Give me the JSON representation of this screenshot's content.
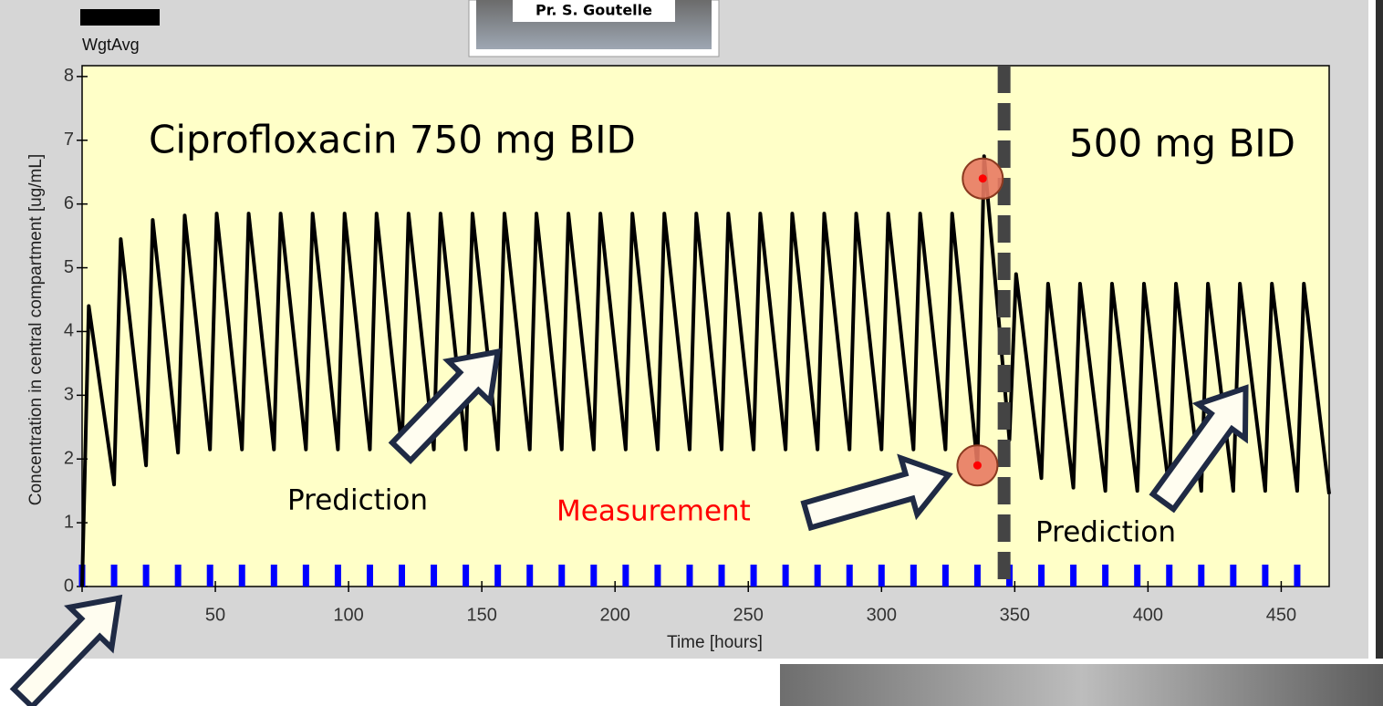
{
  "photo": {
    "caption": "Pr. S. Goutelle"
  },
  "chart_data": {
    "type": "line",
    "xlabel": "Time [hours]",
    "ylabel": "Concentration in central compartment [ug/mL]",
    "annotations": [
      "Ciprofloxacin 750 mg BID",
      "500 mg BID",
      "Prediction",
      "Measurement",
      "Prediction"
    ],
    "x": [
      0,
      2.5,
      12,
      14.5,
      24,
      26.5,
      36,
      38.5,
      48,
      50.5,
      60,
      62.5,
      72,
      74.5,
      84,
      86.5,
      96,
      98.5,
      108,
      110.5,
      120,
      122.5,
      132,
      134.5,
      144,
      146.5,
      156,
      158.5,
      168,
      170.5,
      180,
      182.5,
      192,
      194.5,
      204,
      206.5,
      216,
      218.5,
      228,
      230.5,
      240,
      242.5,
      252,
      254.5,
      264,
      266.5,
      276,
      278.5,
      288,
      290.5,
      300,
      302.5,
      312,
      314.5,
      324,
      326.5,
      336,
      338.5,
      348,
      350.5,
      360,
      362.5,
      372,
      374.5,
      384,
      386.5,
      396,
      398.5,
      408,
      410.5,
      420,
      422.5,
      432,
      434.5,
      444,
      446.5,
      456,
      458.5,
      468
    ],
    "series": [
      {
        "name": "WgtAvg",
        "color": "#000000",
        "values": [
          0,
          4.4,
          1.6,
          5.45,
          1.9,
          5.75,
          2.1,
          5.82,
          2.15,
          5.85,
          2.15,
          5.85,
          2.15,
          5.85,
          2.15,
          5.85,
          2.15,
          5.85,
          2.15,
          5.85,
          2.15,
          5.85,
          2.15,
          5.85,
          2.15,
          5.85,
          2.15,
          5.85,
          2.15,
          5.85,
          2.15,
          5.85,
          2.15,
          5.85,
          2.15,
          5.85,
          2.15,
          5.85,
          2.15,
          5.85,
          2.15,
          5.85,
          2.15,
          5.85,
          2.15,
          5.85,
          2.15,
          5.85,
          2.15,
          5.85,
          2.15,
          5.85,
          2.15,
          5.85,
          2.15,
          5.85,
          1.9,
          6.75,
          2.3,
          4.9,
          1.7,
          4.75,
          1.55,
          4.75,
          1.5,
          4.75,
          1.5,
          4.75,
          1.5,
          4.75,
          1.5,
          4.75,
          1.5,
          4.75,
          1.5,
          4.75,
          1.5,
          4.75,
          1.45
        ]
      }
    ],
    "measurements": {
      "color": "#ff0000",
      "x": [
        336,
        338
      ],
      "values": [
        1.9,
        6.4
      ]
    },
    "doses": {
      "color": "#0000ff",
      "x": [
        0,
        12,
        24,
        36,
        48,
        60,
        72,
        84,
        96,
        108,
        120,
        132,
        144,
        156,
        168,
        180,
        192,
        204,
        216,
        228,
        240,
        252,
        264,
        276,
        288,
        300,
        312,
        324,
        336,
        348,
        360,
        372,
        384,
        396,
        408,
        420,
        432,
        444,
        456
      ]
    },
    "dose_change_x": 346,
    "xlim": [
      0,
      468
    ],
    "ylim": [
      0,
      8.17
    ],
    "xticks": [
      0,
      50,
      100,
      150,
      200,
      250,
      300,
      350,
      400,
      450
    ],
    "yticks": [
      0,
      1,
      2,
      3,
      4,
      5,
      6,
      7,
      8
    ],
    "background": "#ffffc8"
  }
}
